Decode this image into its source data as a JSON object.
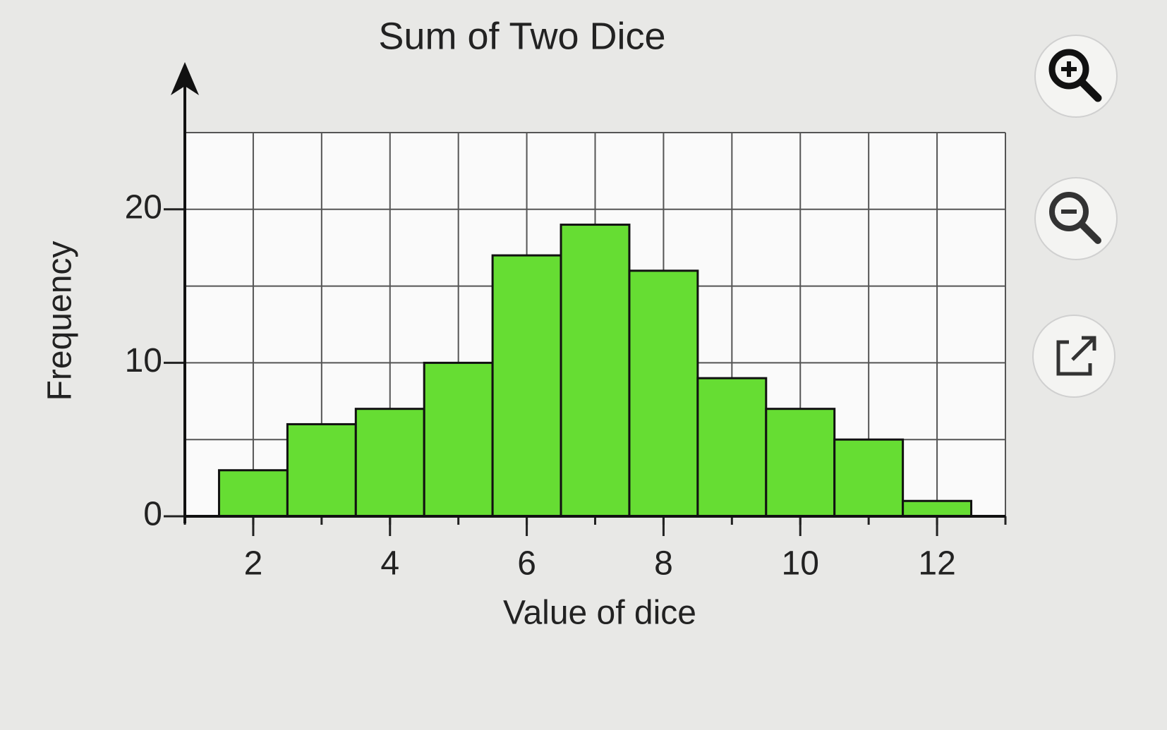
{
  "chart_data": {
    "type": "histogram",
    "title": "Sum of Two Dice",
    "xlabel": "Value of dice",
    "ylabel": "Frequency",
    "bins": [
      1.5,
      2.5,
      3.5,
      4.5,
      5.5,
      6.5,
      7.5,
      8.5,
      9.5,
      10.5,
      11.5,
      12.5
    ],
    "values": [
      3,
      6,
      7,
      10,
      17,
      19,
      16,
      9,
      7,
      5,
      1
    ],
    "color": "#66dd33",
    "xlim": [
      1,
      13
    ],
    "ylim": [
      0,
      25
    ],
    "xticks": [
      2,
      4,
      6,
      8,
      10,
      12
    ],
    "yticks": [
      0,
      10,
      20
    ],
    "xgrid": [
      1,
      2,
      3,
      4,
      5,
      6,
      7,
      8,
      9,
      10,
      11,
      12,
      13
    ],
    "ygrid": [
      0,
      5,
      10,
      15,
      20,
      25
    ],
    "grid": true
  }
}
